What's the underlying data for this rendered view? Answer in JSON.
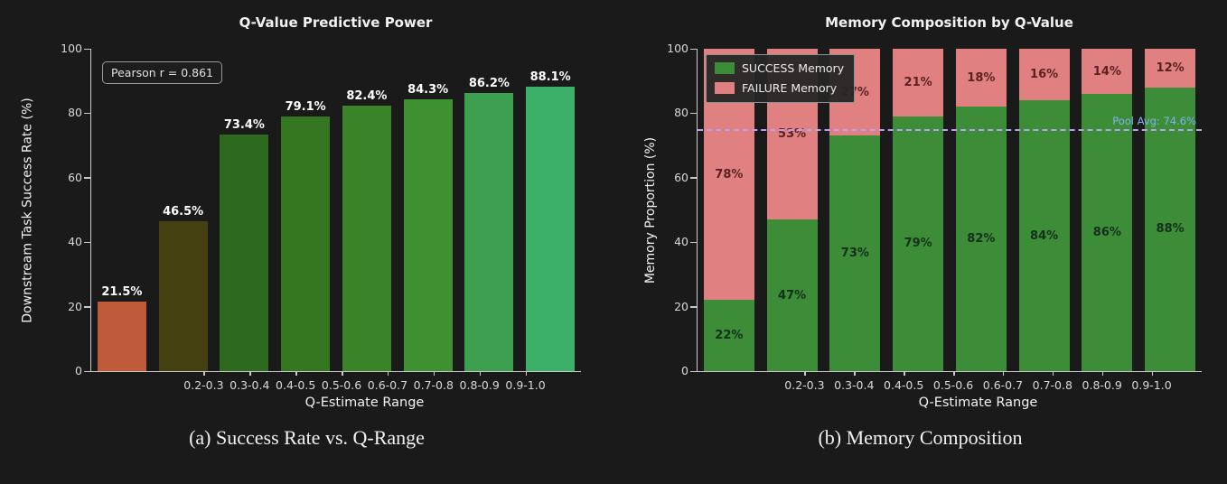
{
  "figure": {
    "background": "#1a1a1a",
    "axis_color": "#c9c9c9",
    "text_color": "#f2f2f2",
    "tick_label_color": "#d8d8d8"
  },
  "chart_data": [
    {
      "type": "bar",
      "title": "Q-Value Predictive Power",
      "xlabel": "Q-Estimate Range",
      "ylabel": "Downstream Task Success Rate (%)",
      "categories": [
        "0.2-0.3",
        "0.3-0.4",
        "0.4-0.5",
        "0.5-0.6",
        "0.6-0.7",
        "0.7-0.8",
        "0.8-0.9",
        "0.9-1.0"
      ],
      "values": [
        21.5,
        46.5,
        73.4,
        79.1,
        82.4,
        84.3,
        86.2,
        88.1
      ],
      "value_labels": [
        "21.5%",
        "46.5%",
        "73.4%",
        "79.1%",
        "82.4%",
        "84.3%",
        "86.2%",
        "88.1%"
      ],
      "bar_colors": [
        "#bf5b3b",
        "#45400f",
        "#2e6a1e",
        "#357621",
        "#3a8328",
        "#3e9031",
        "#3da050",
        "#3cb069"
      ],
      "ylim": [
        0,
        100
      ],
      "yticks": [
        0,
        20,
        40,
        60,
        80,
        100
      ],
      "grid": false,
      "legend": null,
      "annotation": "Pearson r = 0.861",
      "caption": "(a) Success Rate vs. Q-Range"
    },
    {
      "type": "stacked-bar",
      "title": "Memory Composition by Q-Value",
      "xlabel": "Q-Estimate Range",
      "ylabel": "Memory Proportion (%)",
      "categories": [
        "0.2-0.3",
        "0.3-0.4",
        "0.4-0.5",
        "0.5-0.6",
        "0.6-0.7",
        "0.7-0.8",
        "0.8-0.9",
        "0.9-1.0"
      ],
      "series": [
        {
          "name": "SUCCESS Memory",
          "color": "#3d8c38",
          "label_color": "#14301a",
          "values": [
            22,
            47,
            73,
            79,
            82,
            84,
            86,
            88
          ],
          "labels": [
            "22%",
            "47%",
            "73%",
            "79%",
            "82%",
            "84%",
            "86%",
            "88%"
          ]
        },
        {
          "name": "FAILURE Memory",
          "color": "#e08080",
          "label_color": "#5a2222",
          "values": [
            78,
            53,
            27,
            21,
            18,
            16,
            14,
            12
          ],
          "labels": [
            "78%",
            "53%",
            "27%",
            "21%",
            "18%",
            "16%",
            "14%",
            "12%"
          ]
        }
      ],
      "ylim": [
        0,
        100
      ],
      "yticks": [
        0,
        20,
        40,
        60,
        80,
        100
      ],
      "grid": false,
      "legend_position": "upper-left",
      "reference_line": {
        "value": 74.6,
        "label": "Pool Avg: 74.6%",
        "line_color": "#b9a0f5",
        "label_color": "#7fb3f0"
      },
      "caption": "(b) Memory Composition"
    }
  ]
}
